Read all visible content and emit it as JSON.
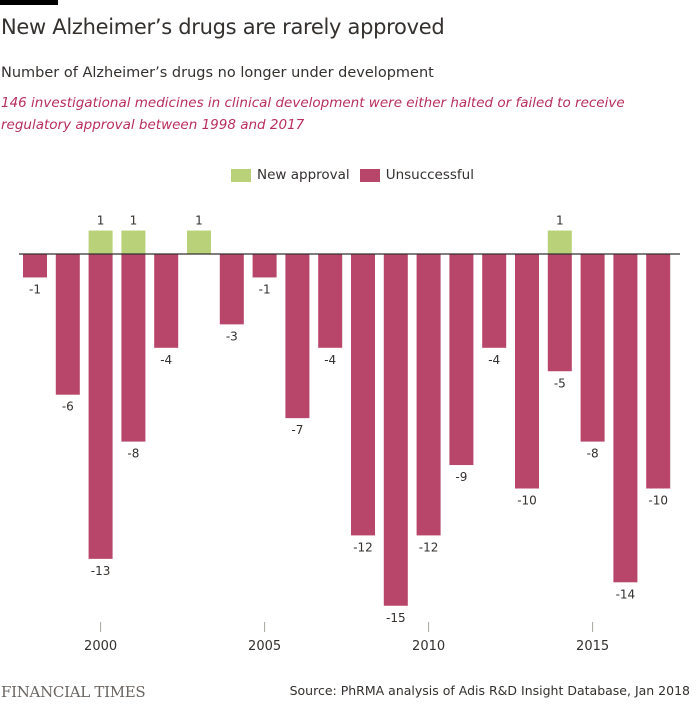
{
  "header": {
    "title": "New Alzheimer’s drugs are rarely approved",
    "subtitle": "Number of Alzheimer’s drugs no longer under development",
    "note": "146 investigational medicines in clinical development were either halted or failed to receive regulatory approval between 1998 and 2017"
  },
  "colors": {
    "approval": "#b9d27a",
    "unsuccessful": "#b8466a",
    "accent_text": "#b82e5c"
  },
  "footer": {
    "logo": "FINANCIAL TIMES",
    "source": "Source: PhRMA analysis of Adis R&D Insight Database, Jan 2018"
  },
  "chart_data": {
    "type": "bar",
    "title": "New Alzheimer’s drugs are rarely approved",
    "xlabel": "",
    "ylabel": "",
    "categories": [
      1998,
      1999,
      2000,
      2001,
      2002,
      2003,
      2004,
      2005,
      2006,
      2007,
      2008,
      2009,
      2010,
      2011,
      2012,
      2013,
      2014,
      2015,
      2016,
      2017
    ],
    "x_ticks": [
      2000,
      2005,
      2010,
      2015
    ],
    "ylim": [
      -15,
      1
    ],
    "grid": false,
    "legend_position": "top-center",
    "series": [
      {
        "name": "New approval",
        "values": [
          0,
          0,
          1,
          1,
          0,
          1,
          0,
          0,
          0,
          0,
          0,
          0,
          0,
          0,
          0,
          0,
          1,
          0,
          0,
          0
        ]
      },
      {
        "name": "Unsuccessful",
        "values": [
          -1,
          -6,
          -13,
          -8,
          -4,
          0,
          -3,
          -1,
          -7,
          -4,
          -12,
          -15,
          -12,
          -9,
          -4,
          -10,
          -5,
          -8,
          -14,
          -10
        ]
      }
    ]
  }
}
